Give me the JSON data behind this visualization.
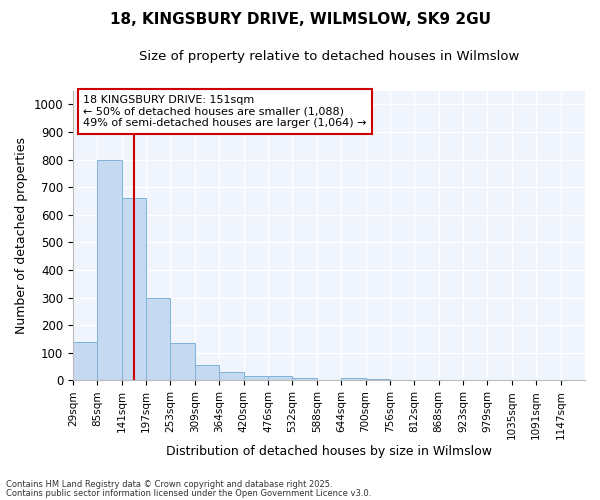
{
  "title_line1": "18, KINGSBURY DRIVE, WILMSLOW, SK9 2GU",
  "title_line2": "Size of property relative to detached houses in Wilmslow",
  "xlabel": "Distribution of detached houses by size in Wilmslow",
  "ylabel": "Number of detached properties",
  "bin_labels": [
    "29sqm",
    "85sqm",
    "141sqm",
    "197sqm",
    "253sqm",
    "309sqm",
    "364sqm",
    "420sqm",
    "476sqm",
    "532sqm",
    "588sqm",
    "644sqm",
    "700sqm",
    "756sqm",
    "812sqm",
    "868sqm",
    "923sqm",
    "979sqm",
    "1035sqm",
    "1091sqm",
    "1147sqm"
  ],
  "bar_values": [
    140,
    800,
    660,
    300,
    135,
    55,
    30,
    15,
    15,
    10,
    0,
    10,
    5,
    0,
    0,
    0,
    0,
    0,
    0,
    0,
    0
  ],
  "bar_color": "#c5d9f0",
  "bar_edge_color": "#7fb3d9",
  "red_line_x": 2.5,
  "annotation_text": "18 KINGSBURY DRIVE: 151sqm\n← 50% of detached houses are smaller (1,088)\n49% of semi-detached houses are larger (1,064) →",
  "annotation_box_color": "#ffffff",
  "annotation_box_edge": "#cc0000",
  "ylim": [
    0,
    1050
  ],
  "yticks": [
    0,
    100,
    200,
    300,
    400,
    500,
    600,
    700,
    800,
    900,
    1000
  ],
  "background_color": "#ffffff",
  "plot_bg_color": "#f0f4fc",
  "grid_color": "#ffffff",
  "footer_line1": "Contains HM Land Registry data © Crown copyright and database right 2025.",
  "footer_line2": "Contains public sector information licensed under the Open Government Licence v3.0."
}
